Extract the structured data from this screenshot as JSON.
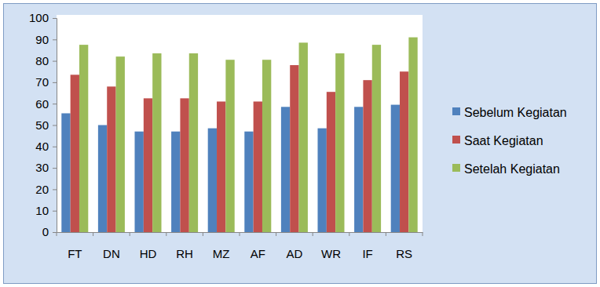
{
  "chart_data": {
    "type": "bar",
    "categories": [
      "FT",
      "DN",
      "HD",
      "RH",
      "MZ",
      "AF",
      "AD",
      "WR",
      "IF",
      "RS"
    ],
    "series": [
      {
        "name": "Sebelum Kegiatan",
        "color": "#4f81bd",
        "values": [
          55.5,
          50,
          47,
          47,
          48.5,
          47,
          58.5,
          48.5,
          58.5,
          59.5
        ]
      },
      {
        "name": "Saat Kegiatan",
        "color": "#c0504d",
        "values": [
          73.5,
          68,
          62.5,
          62.5,
          61,
          61,
          78,
          65.5,
          71,
          75
        ]
      },
      {
        "name": "Setelah Kegiatan",
        "color": "#9bbb59",
        "values": [
          87.5,
          82,
          83.5,
          83.5,
          80.5,
          80.5,
          88.5,
          83.5,
          87.5,
          91
        ]
      }
    ],
    "ylim": [
      0,
      100
    ],
    "yticks": [
      0,
      10,
      20,
      30,
      40,
      50,
      60,
      70,
      80,
      90,
      100
    ],
    "grid": false,
    "legend": "right"
  }
}
